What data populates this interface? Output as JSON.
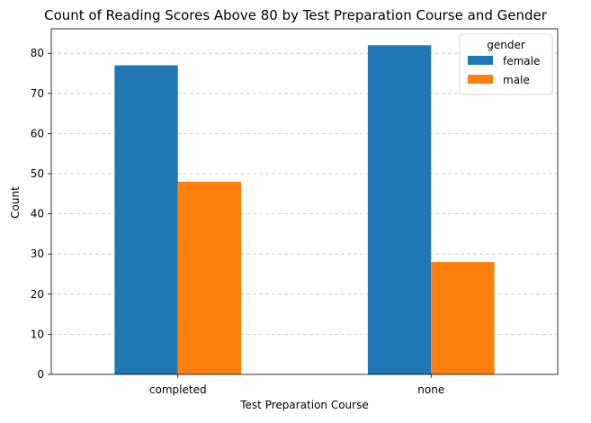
{
  "chart_data": {
    "type": "bar",
    "title": "Count of Reading Scores Above 80 by Test Preparation Course and Gender",
    "xlabel": "Test Preparation Course",
    "ylabel": "Count",
    "categories": [
      "completed",
      "none"
    ],
    "series": [
      {
        "name": "female",
        "values": [
          77,
          82
        ],
        "color": "#1f77b4"
      },
      {
        "name": "male",
        "values": [
          48,
          28
        ],
        "color": "#ff7f0e"
      }
    ],
    "ylim": [
      0,
      86.1
    ],
    "yticks": [
      0,
      10,
      20,
      30,
      40,
      50,
      60,
      70,
      80
    ],
    "grid": "horizontal dashed",
    "legend": {
      "title": "gender",
      "placement": "top-right"
    }
  }
}
